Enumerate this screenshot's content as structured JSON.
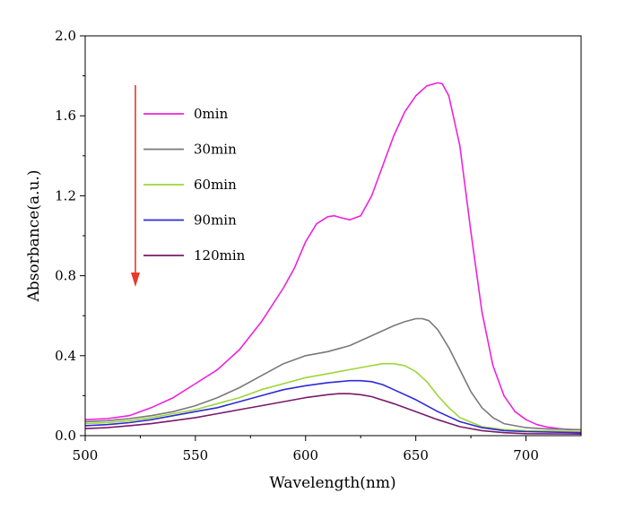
{
  "chart_data": {
    "type": "line",
    "title": "",
    "xlabel": "Wavelength(nm)",
    "ylabel": "Absorbance(a.u.)",
    "xlim": [
      500,
      725
    ],
    "ylim": [
      0.0,
      2.0
    ],
    "xticks": [
      500,
      550,
      600,
      650,
      700
    ],
    "xtick_labels": [
      "500",
      "550",
      "600",
      "650",
      "700"
    ],
    "yticks": [
      0.0,
      0.4,
      0.8,
      1.2,
      1.6,
      2.0
    ],
    "ytick_labels": [
      "0.0",
      "0.4",
      "0.8",
      "1.2",
      "1.6",
      "2.0"
    ],
    "grid": false,
    "legend_position": "top-left",
    "annotation": "red downward arrow beside legend",
    "arrow_color": "#e8392c",
    "series": [
      {
        "name": "0min",
        "color": "#ee22dd",
        "x": [
          500,
          510,
          520,
          530,
          540,
          550,
          560,
          570,
          580,
          590,
          595,
          600,
          605,
          610,
          613,
          616,
          620,
          625,
          630,
          635,
          640,
          645,
          650,
          655,
          660,
          662,
          665,
          670,
          675,
          680,
          685,
          690,
          695,
          700,
          705,
          710,
          715,
          720,
          725
        ],
        "y": [
          0.08,
          0.085,
          0.1,
          0.14,
          0.19,
          0.26,
          0.33,
          0.43,
          0.57,
          0.74,
          0.84,
          0.97,
          1.06,
          1.095,
          1.1,
          1.09,
          1.08,
          1.1,
          1.2,
          1.35,
          1.5,
          1.62,
          1.7,
          1.75,
          1.765,
          1.76,
          1.7,
          1.45,
          1.02,
          0.62,
          0.35,
          0.2,
          0.12,
          0.08,
          0.055,
          0.042,
          0.035,
          0.03,
          0.03
        ]
      },
      {
        "name": "30min",
        "color": "#7a7a7a",
        "x": [
          500,
          510,
          520,
          530,
          540,
          550,
          560,
          570,
          580,
          590,
          600,
          610,
          620,
          630,
          640,
          645,
          650,
          653,
          656,
          660,
          665,
          670,
          675,
          680,
          685,
          690,
          700,
          710,
          725
        ],
        "y": [
          0.07,
          0.075,
          0.085,
          0.1,
          0.12,
          0.15,
          0.19,
          0.24,
          0.3,
          0.36,
          0.4,
          0.42,
          0.45,
          0.5,
          0.55,
          0.57,
          0.585,
          0.585,
          0.575,
          0.53,
          0.44,
          0.33,
          0.22,
          0.14,
          0.09,
          0.06,
          0.04,
          0.033,
          0.03
        ]
      },
      {
        "name": "60min",
        "color": "#9ed53a",
        "x": [
          500,
          510,
          520,
          530,
          540,
          550,
          560,
          570,
          580,
          590,
          600,
          610,
          620,
          630,
          635,
          640,
          645,
          650,
          655,
          660,
          665,
          670,
          680,
          690,
          700,
          725
        ],
        "y": [
          0.06,
          0.065,
          0.075,
          0.09,
          0.11,
          0.13,
          0.16,
          0.19,
          0.23,
          0.26,
          0.29,
          0.31,
          0.33,
          0.35,
          0.36,
          0.36,
          0.35,
          0.32,
          0.27,
          0.2,
          0.14,
          0.09,
          0.045,
          0.03,
          0.025,
          0.02
        ]
      },
      {
        "name": "90min",
        "color": "#2e2ad6",
        "x": [
          500,
          510,
          520,
          530,
          540,
          550,
          560,
          570,
          580,
          590,
          600,
          610,
          620,
          625,
          630,
          635,
          640,
          650,
          660,
          670,
          680,
          690,
          700,
          725
        ],
        "y": [
          0.05,
          0.055,
          0.065,
          0.08,
          0.1,
          0.12,
          0.14,
          0.17,
          0.2,
          0.23,
          0.25,
          0.265,
          0.275,
          0.275,
          0.27,
          0.255,
          0.23,
          0.18,
          0.12,
          0.07,
          0.04,
          0.025,
          0.02,
          0.015
        ]
      },
      {
        "name": "120min",
        "color": "#7a1a6a",
        "x": [
          500,
          510,
          520,
          530,
          540,
          550,
          560,
          570,
          580,
          590,
          600,
          610,
          615,
          620,
          625,
          630,
          640,
          650,
          660,
          670,
          680,
          690,
          700,
          725
        ],
        "y": [
          0.035,
          0.04,
          0.05,
          0.06,
          0.075,
          0.09,
          0.11,
          0.13,
          0.15,
          0.17,
          0.19,
          0.205,
          0.21,
          0.21,
          0.205,
          0.195,
          0.16,
          0.12,
          0.08,
          0.045,
          0.025,
          0.015,
          0.01,
          0.008
        ]
      }
    ]
  }
}
